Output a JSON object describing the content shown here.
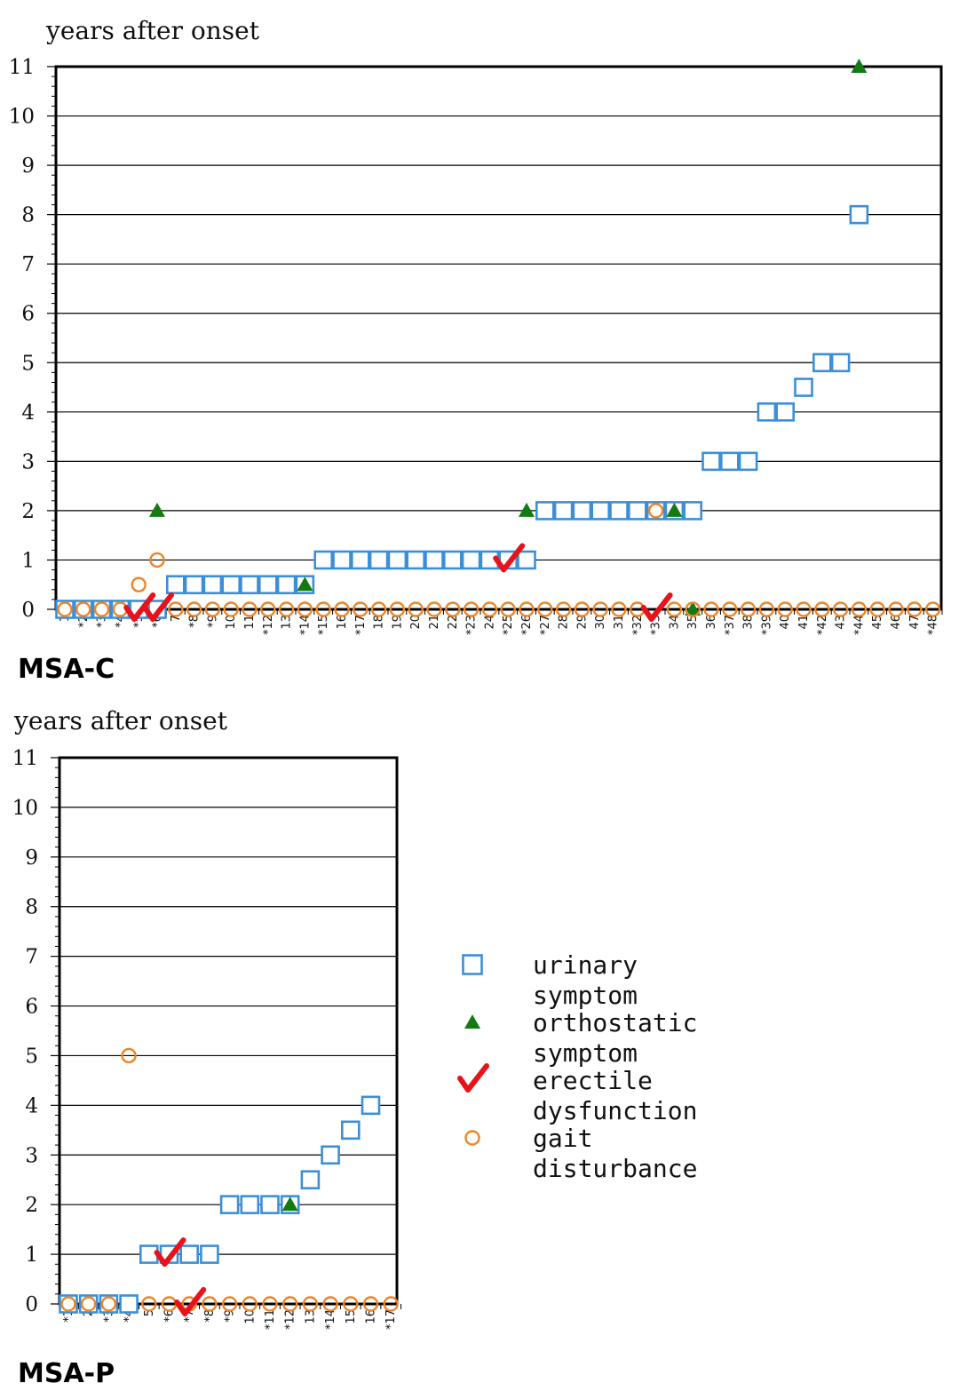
{
  "colors": {
    "urinary": "#3b8fd9",
    "orthostatic": "#147a14",
    "erectile": "#e8121a",
    "gait": "#ee8424"
  },
  "legend": [
    {
      "key": "urinary",
      "icon": "square-icon",
      "label_line1": "urinary",
      "label_line2": "symptom"
    },
    {
      "key": "orthostatic",
      "icon": "triangle-icon",
      "label_line1": "orthostatic",
      "label_line2": "symptom"
    },
    {
      "key": "erectile",
      "icon": "checkmark-icon",
      "label_line1": "erectile",
      "label_line2": "dysfunction"
    },
    {
      "key": "gait",
      "icon": "circle-icon",
      "label_line1": "gait",
      "label_line2": "disturbance"
    }
  ],
  "chart_data": [
    {
      "id": "msa-c",
      "type": "scatter",
      "panel_label": "MSA-C",
      "ylabel": "years after onset",
      "ylim": [
        0,
        11
      ],
      "ytick_labels": [
        "0",
        "1",
        "2",
        "3",
        "4",
        "5",
        "6",
        "7",
        "8",
        "9",
        "10",
        "11"
      ],
      "x_categories": [
        "1",
        "*2",
        "*3",
        "*4",
        "*5",
        "*6",
        "7",
        "*8",
        "*9",
        "10",
        "11",
        "*12",
        "13",
        "*14",
        "*15",
        "16",
        "*17",
        "18",
        "19",
        "20",
        "21",
        "22",
        "*23",
        "24",
        "*25",
        "*26",
        "*27",
        "28",
        "29",
        "30",
        "31",
        "*32",
        "*33",
        "34",
        "35",
        "36",
        "*37",
        "38",
        "*39",
        "40",
        "41",
        "*42",
        "43",
        "*44",
        "45",
        "46",
        "47",
        "*48"
      ],
      "grid": true,
      "series": [
        {
          "key": "urinary",
          "points": [
            [
              1,
              0
            ],
            [
              2,
              0
            ],
            [
              3,
              0
            ],
            [
              4,
              0
            ],
            [
              5,
              0
            ],
            [
              6,
              0
            ],
            [
              7,
              0.5
            ],
            [
              8,
              0.5
            ],
            [
              9,
              0.5
            ],
            [
              10,
              0.5
            ],
            [
              11,
              0.5
            ],
            [
              12,
              0.5
            ],
            [
              13,
              0.5
            ],
            [
              14,
              0.5
            ],
            [
              15,
              1
            ],
            [
              16,
              1
            ],
            [
              17,
              1
            ],
            [
              18,
              1
            ],
            [
              19,
              1
            ],
            [
              20,
              1
            ],
            [
              21,
              1
            ],
            [
              22,
              1
            ],
            [
              23,
              1
            ],
            [
              24,
              1
            ],
            [
              25,
              1
            ],
            [
              26,
              1
            ],
            [
              27,
              2
            ],
            [
              28,
              2
            ],
            [
              29,
              2
            ],
            [
              30,
              2
            ],
            [
              31,
              2
            ],
            [
              32,
              2
            ],
            [
              33,
              2
            ],
            [
              34,
              2
            ],
            [
              35,
              2
            ],
            [
              36,
              3
            ],
            [
              37,
              3
            ],
            [
              38,
              3
            ],
            [
              39,
              4
            ],
            [
              40,
              4
            ],
            [
              41,
              4.5
            ],
            [
              42,
              5
            ],
            [
              43,
              5
            ],
            [
              44,
              8
            ]
          ]
        },
        {
          "key": "orthostatic",
          "points": [
            [
              6,
              2
            ],
            [
              14,
              0.5
            ],
            [
              26,
              2
            ],
            [
              34,
              2
            ],
            [
              35,
              0
            ],
            [
              44,
              11
            ]
          ]
        },
        {
          "key": "erectile",
          "points": [
            [
              5,
              0
            ],
            [
              6,
              0
            ],
            [
              25,
              1
            ],
            [
              33,
              0
            ]
          ]
        },
        {
          "key": "gait",
          "points": [
            [
              1,
              0
            ],
            [
              2,
              0
            ],
            [
              3,
              0
            ],
            [
              4,
              0
            ],
            [
              5,
              0.5
            ],
            [
              6,
              1
            ],
            [
              7,
              0
            ],
            [
              8,
              0
            ],
            [
              9,
              0
            ],
            [
              10,
              0
            ],
            [
              11,
              0
            ],
            [
              12,
              0
            ],
            [
              13,
              0
            ],
            [
              14,
              0
            ],
            [
              15,
              0
            ],
            [
              16,
              0
            ],
            [
              17,
              0
            ],
            [
              18,
              0
            ],
            [
              19,
              0
            ],
            [
              20,
              0
            ],
            [
              21,
              0
            ],
            [
              22,
              0
            ],
            [
              23,
              0
            ],
            [
              24,
              0
            ],
            [
              25,
              0
            ],
            [
              26,
              0
            ],
            [
              27,
              0
            ],
            [
              28,
              0
            ],
            [
              29,
              0
            ],
            [
              30,
              0
            ],
            [
              31,
              0
            ],
            [
              32,
              0
            ],
            [
              33,
              2
            ],
            [
              34,
              0
            ],
            [
              35,
              0
            ],
            [
              36,
              0
            ],
            [
              37,
              0
            ],
            [
              38,
              0
            ],
            [
              39,
              0
            ],
            [
              40,
              0
            ],
            [
              41,
              0
            ],
            [
              42,
              0
            ],
            [
              43,
              0
            ],
            [
              44,
              0
            ],
            [
              45,
              0
            ],
            [
              46,
              0
            ],
            [
              47,
              0
            ],
            [
              48,
              0
            ]
          ]
        }
      ]
    },
    {
      "id": "msa-p",
      "type": "scatter",
      "panel_label": "MSA-P",
      "ylabel": "years after onset",
      "ylim": [
        0,
        11
      ],
      "ytick_labels": [
        "0",
        "1",
        "2",
        "3",
        "4",
        "5",
        "6",
        "7",
        "8",
        "9",
        "10",
        "11"
      ],
      "x_categories": [
        "*1",
        "2",
        "*3",
        "*4",
        "5",
        "*6",
        "*7",
        "*8",
        "*9",
        "10",
        "*11",
        "*12",
        "13",
        "*14",
        "15",
        "16",
        "*17"
      ],
      "grid": true,
      "series": [
        {
          "key": "urinary",
          "points": [
            [
              1,
              0
            ],
            [
              2,
              0
            ],
            [
              3,
              0
            ],
            [
              4,
              0
            ],
            [
              5,
              1
            ],
            [
              6,
              1
            ],
            [
              7,
              1
            ],
            [
              8,
              1
            ],
            [
              9,
              2
            ],
            [
              10,
              2
            ],
            [
              11,
              2
            ],
            [
              12,
              2
            ],
            [
              13,
              2.5
            ],
            [
              14,
              3
            ],
            [
              15,
              3.5
            ],
            [
              16,
              4
            ]
          ]
        },
        {
          "key": "orthostatic",
          "points": [
            [
              12,
              2
            ]
          ]
        },
        {
          "key": "erectile",
          "points": [
            [
              6,
              1
            ],
            [
              7,
              0
            ]
          ]
        },
        {
          "key": "gait",
          "points": [
            [
              1,
              0
            ],
            [
              2,
              0
            ],
            [
              3,
              0
            ],
            [
              4,
              5
            ],
            [
              5,
              0
            ],
            [
              6,
              0
            ],
            [
              7,
              0
            ],
            [
              8,
              0
            ],
            [
              9,
              0
            ],
            [
              10,
              0
            ],
            [
              11,
              0
            ],
            [
              12,
              0
            ],
            [
              13,
              0
            ],
            [
              14,
              0
            ],
            [
              15,
              0
            ],
            [
              16,
              0
            ],
            [
              17,
              0
            ]
          ]
        }
      ]
    }
  ]
}
